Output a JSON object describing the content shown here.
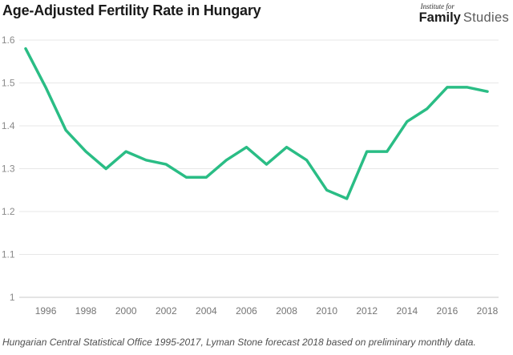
{
  "title": "Age-Adjusted Fertility Rate in Hungary",
  "logo": {
    "line1": "Institute for",
    "word_bold": "Family",
    "word_light": "Studies"
  },
  "source_note": "Hungarian Central Statistical Office 1995-2017, Lyman Stone forecast 2018 based on preliminary monthly data.",
  "colors": {
    "line": "#2abd85",
    "grid": "#e7e7e7",
    "axis_line": "#c9c9c9",
    "y_tick_label": "#8a8a8a",
    "x_tick_label": "#757575",
    "title": "#1a1a1a",
    "caption": "#4f4f4f"
  },
  "chart_data": {
    "type": "line",
    "title": "Age-Adjusted Fertility Rate in Hungary",
    "series_name": "Age-adjusted fertility rate",
    "x": [
      1995,
      1996,
      1997,
      1998,
      1999,
      2000,
      2001,
      2002,
      2003,
      2004,
      2005,
      2006,
      2007,
      2008,
      2009,
      2010,
      2011,
      2012,
      2013,
      2014,
      2015,
      2016,
      2017,
      2018
    ],
    "values": [
      1.58,
      1.49,
      1.39,
      1.34,
      1.3,
      1.34,
      1.32,
      1.31,
      1.28,
      1.28,
      1.32,
      1.35,
      1.31,
      1.35,
      1.32,
      1.25,
      1.23,
      1.34,
      1.34,
      1.41,
      1.44,
      1.49,
      1.49,
      1.48
    ],
    "xlabel": "",
    "ylabel": "",
    "ylim": [
      1.0,
      1.6
    ],
    "xlim": [
      1995,
      2018
    ],
    "y_ticks": [
      1,
      1.1,
      1.2,
      1.3,
      1.4,
      1.5,
      1.6
    ],
    "y_tick_labels": [
      "1",
      "1.1",
      "1.2",
      "1.3",
      "1.4",
      "1.5",
      "1.6"
    ],
    "x_tick_labels": [
      "1996",
      "1998",
      "2000",
      "2002",
      "2004",
      "2006",
      "2008",
      "2010",
      "2012",
      "2014",
      "2016",
      "2018"
    ],
    "grid": true,
    "legend": "none"
  }
}
